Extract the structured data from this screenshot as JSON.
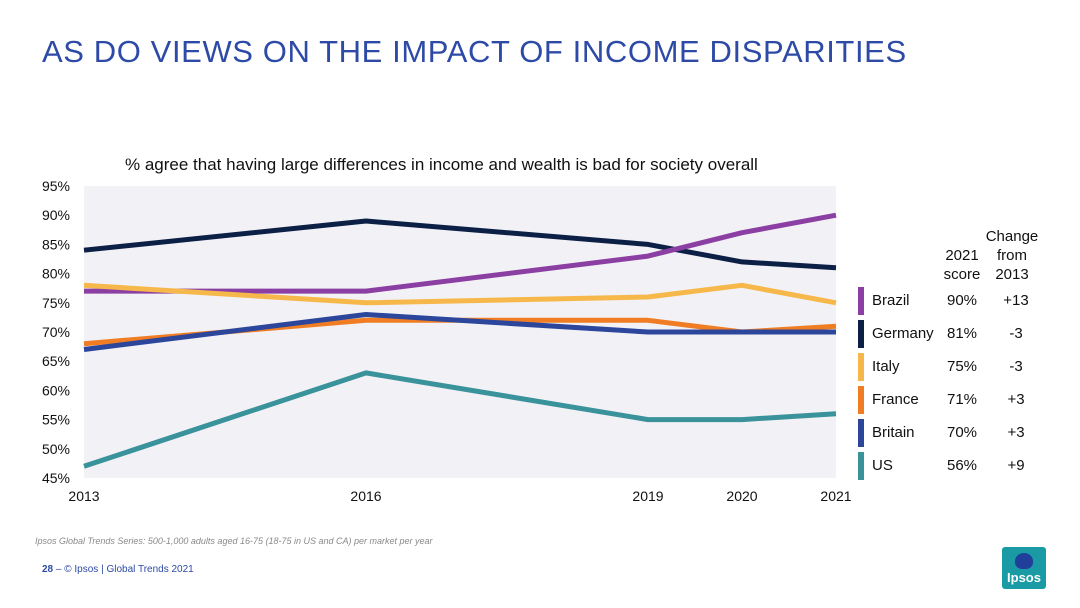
{
  "slide": {
    "title": "AS DO VIEWS ON THE IMPACT OF INCOME DISPARITIES",
    "footnote": "Ipsos Global Trends Series: 500-1,000 adults aged 16-75 (18-75 in US and CA) per market per year",
    "page_number": "28",
    "footer_text": "– © Ipsos | Global Trends 2021",
    "logo_text": "Ipsos"
  },
  "legend": {
    "score_header": "2021\nscore",
    "change_header": "Change\nfrom\n2013",
    "rows": [
      {
        "name": "Brazil",
        "score": "90%",
        "change": "+13",
        "color": "#8b3fa3"
      },
      {
        "name": "Germany",
        "score": "81%",
        "change": "-3",
        "color": "#0c1f45"
      },
      {
        "name": "Italy",
        "score": "75%",
        "change": "-3",
        "color": "#f6b84a"
      },
      {
        "name": "France",
        "score": "71%",
        "change": "+3",
        "color": "#f07d23"
      },
      {
        "name": "Britain",
        "score": "70%",
        "change": "+3",
        "color": "#2c469c"
      },
      {
        "name": "US",
        "score": "56%",
        "change": "+9",
        "color": "#3a929b"
      }
    ]
  },
  "chart_data": {
    "type": "line",
    "title": "% agree that having large differences in income and wealth is bad for society overall",
    "xlabel": "",
    "ylabel": "",
    "x": [
      2013,
      2016,
      2019,
      2020,
      2021
    ],
    "x_tick_labels": [
      "2013",
      "2016",
      "2019",
      "2020",
      "2021"
    ],
    "ylim": [
      45,
      95
    ],
    "y_ticks": [
      45,
      50,
      55,
      60,
      65,
      70,
      75,
      80,
      85,
      90,
      95
    ],
    "y_tick_labels": [
      "45%",
      "50%",
      "55%",
      "60%",
      "65%",
      "70%",
      "75%",
      "80%",
      "85%",
      "90%",
      "95%"
    ],
    "series": [
      {
        "name": "Germany",
        "color": "#0c1f45",
        "values": [
          84,
          89,
          85,
          82,
          81
        ]
      },
      {
        "name": "Brazil",
        "color": "#8b3fa3",
        "values": [
          77,
          77,
          83,
          87,
          90
        ]
      },
      {
        "name": "Italy",
        "color": "#f6b84a",
        "values": [
          78,
          75,
          76,
          78,
          75
        ]
      },
      {
        "name": "France",
        "color": "#f07d23",
        "values": [
          68,
          72,
          72,
          70,
          71
        ]
      },
      {
        "name": "Britain",
        "color": "#2c469c",
        "values": [
          67,
          73,
          70,
          70,
          70
        ]
      },
      {
        "name": "US",
        "color": "#3a929b",
        "values": [
          47,
          63,
          55,
          55,
          56
        ]
      }
    ]
  }
}
